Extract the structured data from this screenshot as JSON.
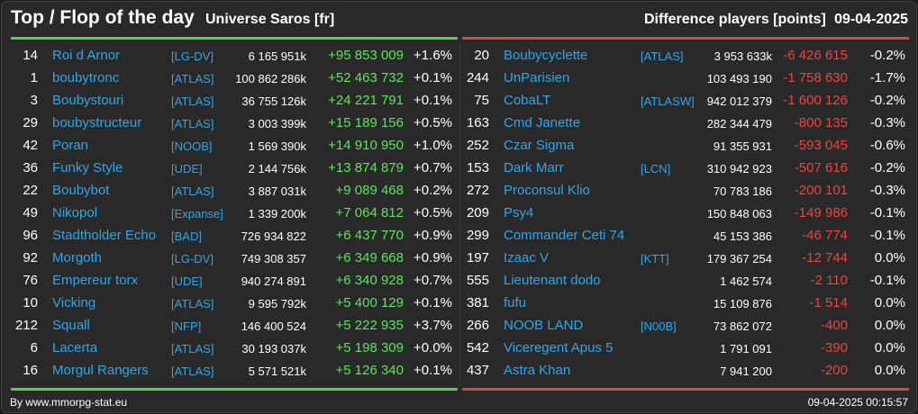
{
  "header": {
    "title": "Top / Flop of the day",
    "universe": "Universe Saros [fr]",
    "metric": "Difference players [points]",
    "date": "09-04-2025"
  },
  "colors": {
    "background": "#292929",
    "top_accent": "#4fd24f",
    "flop_accent": "#d84a3f",
    "name_color": "#2fa6e8",
    "gain_color": "#5ee35e",
    "loss_color": "#e8473f"
  },
  "top": [
    {
      "rank": "14",
      "name": "Roi d Arnor",
      "alliance": "[LG-DV]",
      "points": "6 165 951k",
      "diff": "+95 853 009",
      "pct": "+1.6%"
    },
    {
      "rank": "1",
      "name": "boubytronc",
      "alliance": "[ATLAS]",
      "points": "100 862 286k",
      "diff": "+52 463 732",
      "pct": "+0.1%"
    },
    {
      "rank": "3",
      "name": "Boubystouri",
      "alliance": "[ATLAS]",
      "points": "36 755 126k",
      "diff": "+24 221 791",
      "pct": "+0.1%"
    },
    {
      "rank": "29",
      "name": "boubystructeur",
      "alliance": "[ATLAS]",
      "points": "3 003 399k",
      "diff": "+15 189 156",
      "pct": "+0.5%"
    },
    {
      "rank": "42",
      "name": "Poran",
      "alliance": "[NOOB]",
      "points": "1 569 390k",
      "diff": "+14 910 950",
      "pct": "+1.0%"
    },
    {
      "rank": "36",
      "name": "Funky Style",
      "alliance": "[UDE]",
      "points": "2 144 756k",
      "diff": "+13 874 879",
      "pct": "+0.7%"
    },
    {
      "rank": "22",
      "name": "Boubybot",
      "alliance": "[ATLAS]",
      "points": "3 887 031k",
      "diff": "+9 089 468",
      "pct": "+0.2%"
    },
    {
      "rank": "49",
      "name": "Nikopol",
      "alliance": "[Expanse]",
      "points": "1 339 200k",
      "diff": "+7 064 812",
      "pct": "+0.5%"
    },
    {
      "rank": "96",
      "name": "Stadtholder Echo",
      "alliance": "[BAD]",
      "points": "726 934 822",
      "diff": "+6 437 770",
      "pct": "+0.9%"
    },
    {
      "rank": "92",
      "name": "Morgoth",
      "alliance": "[LG-DV]",
      "points": "749 308 357",
      "diff": "+6 349 668",
      "pct": "+0.9%"
    },
    {
      "rank": "76",
      "name": "Empereur torx",
      "alliance": "[UDE]",
      "points": "940 274 891",
      "diff": "+6 340 928",
      "pct": "+0.7%"
    },
    {
      "rank": "10",
      "name": "Vicking",
      "alliance": "[ATLAS]",
      "points": "9 595 792k",
      "diff": "+5 400 129",
      "pct": "+0.1%"
    },
    {
      "rank": "212",
      "name": "Squall",
      "alliance": "[NFP]",
      "points": "146 400 524",
      "diff": "+5 222 935",
      "pct": "+3.7%"
    },
    {
      "rank": "6",
      "name": "Lacerta",
      "alliance": "[ATLAS]",
      "points": "30 193 037k",
      "diff": "+5 198 309",
      "pct": "+0.0%"
    },
    {
      "rank": "16",
      "name": "Morgul Rangers",
      "alliance": "[ATLAS]",
      "points": "5 571 521k",
      "diff": "+5 126 340",
      "pct": "+0.1%"
    }
  ],
  "flop": [
    {
      "rank": "20",
      "name": "Boubycyclette",
      "alliance": "[ATLAS]",
      "points": "3 953 633k",
      "diff": "-6 426 615",
      "pct": "-0.2%"
    },
    {
      "rank": "244",
      "name": "UnParisien",
      "alliance": "",
      "points": "103 493 190",
      "diff": "-1 758 630",
      "pct": "-1.7%"
    },
    {
      "rank": "75",
      "name": "CobaLT",
      "alliance": "[ATLASW]",
      "points": "942 012 379",
      "diff": "-1 600 126",
      "pct": "-0.2%"
    },
    {
      "rank": "163",
      "name": "Cmd Janette",
      "alliance": "",
      "points": "282 344 479",
      "diff": "-800 135",
      "pct": "-0.3%"
    },
    {
      "rank": "252",
      "name": "Czar Sigma",
      "alliance": "",
      "points": "91 355 931",
      "diff": "-593 045",
      "pct": "-0.6%"
    },
    {
      "rank": "153",
      "name": "Dark Marr",
      "alliance": "[LCN]",
      "points": "310 942 923",
      "diff": "-507 616",
      "pct": "-0.2%"
    },
    {
      "rank": "272",
      "name": "Proconsul Klio",
      "alliance": "",
      "points": "70 783 186",
      "diff": "-200 101",
      "pct": "-0.3%"
    },
    {
      "rank": "209",
      "name": "Psy4",
      "alliance": "",
      "points": "150 848 063",
      "diff": "-149 986",
      "pct": "-0.1%"
    },
    {
      "rank": "299",
      "name": "Commander Ceti 74",
      "alliance": "",
      "points": "45 153 386",
      "diff": "-46 774",
      "pct": "-0.1%"
    },
    {
      "rank": "197",
      "name": "Izaac V",
      "alliance": "[KTT]",
      "points": "179 367 254",
      "diff": "-12 744",
      "pct": "0.0%"
    },
    {
      "rank": "555",
      "name": "Lieutenant dodo",
      "alliance": "",
      "points": "1 462 574",
      "diff": "-2 110",
      "pct": "-0.1%"
    },
    {
      "rank": "381",
      "name": "fufu",
      "alliance": "",
      "points": "15 109 876",
      "diff": "-1 514",
      "pct": "0.0%"
    },
    {
      "rank": "266",
      "name": "NOOB LAND",
      "alliance": "[N00B]",
      "points": "73 862 072",
      "diff": "-400",
      "pct": "0.0%"
    },
    {
      "rank": "542",
      "name": "Viceregent Apus 5",
      "alliance": "",
      "points": "1 791 091",
      "diff": "-390",
      "pct": "0.0%"
    },
    {
      "rank": "437",
      "name": "Astra Khan",
      "alliance": "",
      "points": "7 941 200",
      "diff": "-200",
      "pct": "0.0%"
    }
  ],
  "footer": {
    "credit": "By www.mmorpg-stat.eu",
    "timestamp": "09-04-2025 00:15:57"
  }
}
